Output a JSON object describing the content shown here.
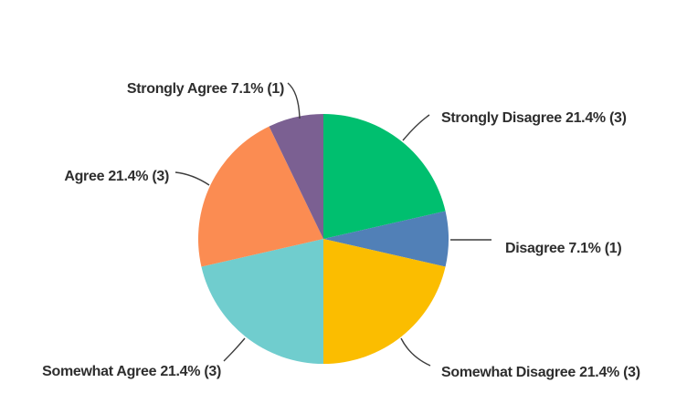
{
  "chart_data": {
    "type": "pie",
    "title": "",
    "direction": "clockwise",
    "start_angle_deg": 0,
    "labels_style": "outside-with-leader-lines",
    "legend_position": "none",
    "background": "#FFFFFF",
    "label_text_color": "#2E2E2E",
    "leader_line_color": "#3C3C3C",
    "slices": [
      {
        "label": "Strongly Disagree",
        "percent": 21.4,
        "count": 3,
        "display": "Strongly Disagree 21.4% (3)",
        "color": "#00BF6F"
      },
      {
        "label": "Disagree",
        "percent": 7.1,
        "count": 1,
        "display": "Disagree 7.1% (1)",
        "color": "#5180B7"
      },
      {
        "label": "Somewhat Disagree",
        "percent": 21.4,
        "count": 3,
        "display": "Somewhat Disagree 21.4% (3)",
        "color": "#FBBD00"
      },
      {
        "label": "Somewhat Agree",
        "percent": 21.4,
        "count": 3,
        "display": "Somewhat Agree 21.4% (3)",
        "color": "#70CDCE"
      },
      {
        "label": "Agree",
        "percent": 21.4,
        "count": 3,
        "display": "Agree 21.4% (3)",
        "color": "#FB8C52"
      },
      {
        "label": "Strongly Agree",
        "percent": 7.1,
        "count": 1,
        "display": "Strongly Agree 7.1% (1)",
        "color": "#7B6092"
      }
    ]
  }
}
